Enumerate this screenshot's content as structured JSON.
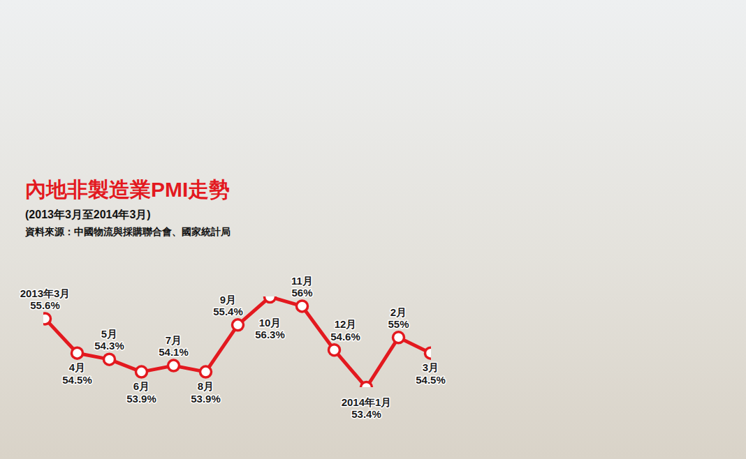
{
  "chart_data": {
    "type": "line",
    "title": "內地非製造業PMI走勢",
    "subtitle": "(2013年3月至2014年3月)",
    "caption": "資料來源：中國物流與採購聯合會、國家統計局",
    "categories": [
      "2013年3月",
      "4月",
      "5月",
      "6月",
      "7月",
      "8月",
      "9月",
      "10月",
      "11月",
      "12月",
      "2014年1月",
      "2月",
      "3月"
    ],
    "values": [
      55.6,
      54.5,
      54.3,
      53.9,
      54.1,
      53.9,
      55.4,
      56.3,
      56,
      54.6,
      53.4,
      55,
      54.5
    ],
    "value_labels": [
      "55.6%",
      "54.5%",
      "54.3%",
      "53.9%",
      "54.1%",
      "53.9%",
      "55.4%",
      "56.3%",
      "56%",
      "54.6%",
      "53.4%",
      "55%",
      "54.5%"
    ],
    "color": "#e3191f",
    "marker": "circle",
    "data_labels": true,
    "tick_labels": false,
    "grid": false
  }
}
